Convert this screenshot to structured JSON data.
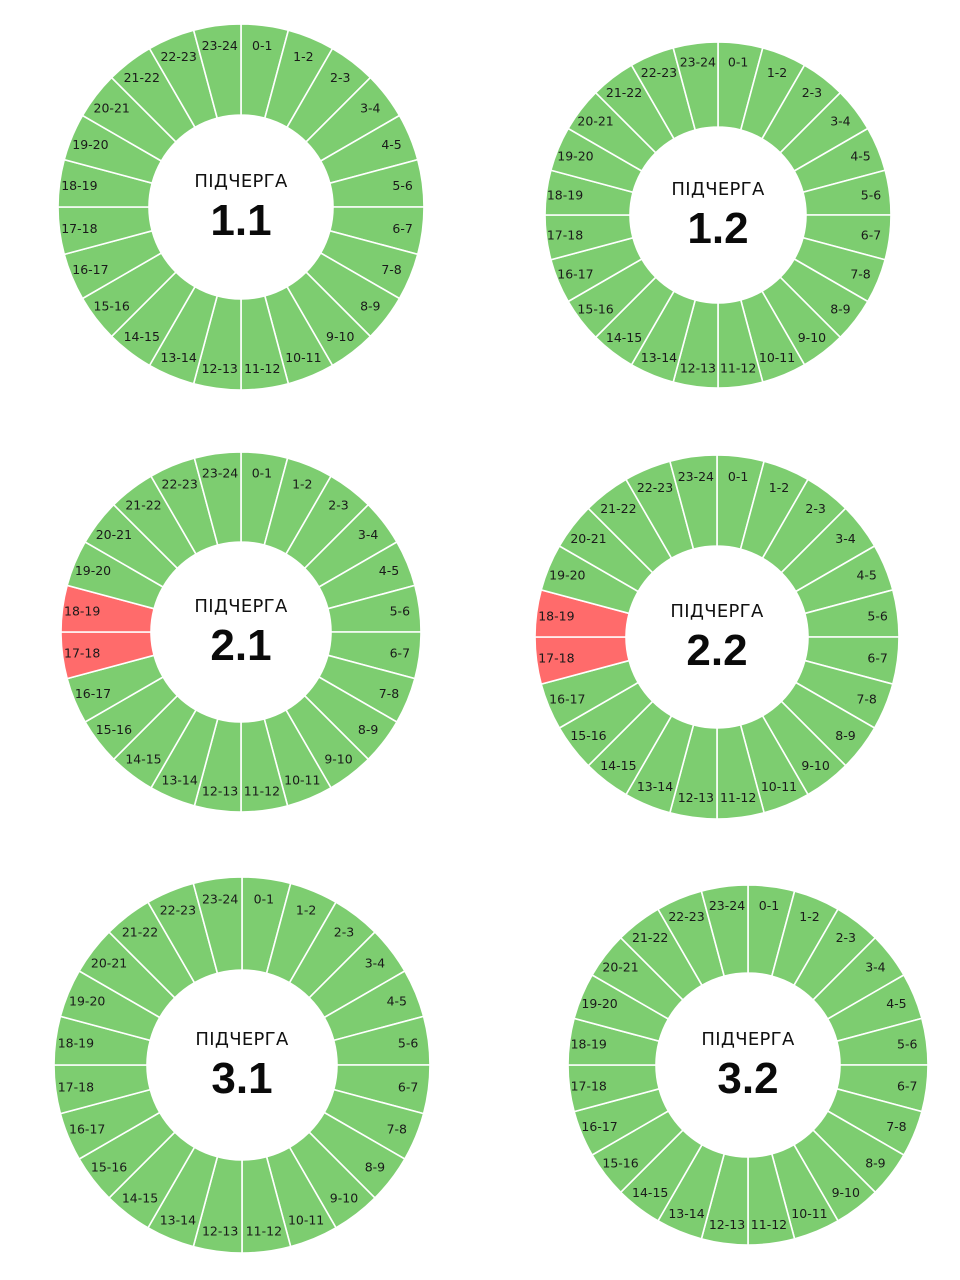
{
  "colors": {
    "on": "#7dcd70",
    "off": "#ff6b6b",
    "divider": "#ffffff",
    "background": "#ffffff"
  },
  "chart_data": [
    {
      "type": "pie",
      "caption": "ПІДЧЕРГА",
      "queue": "1.1",
      "categories": [
        "0-1",
        "1-2",
        "2-3",
        "3-4",
        "4-5",
        "5-6",
        "6-7",
        "7-8",
        "8-9",
        "9-10",
        "10-11",
        "11-12",
        "12-13",
        "13-14",
        "14-15",
        "15-16",
        "16-17",
        "17-18",
        "18-19",
        "19-20",
        "20-21",
        "21-22",
        "22-23",
        "23-24"
      ],
      "states": [
        "on",
        "on",
        "on",
        "on",
        "on",
        "on",
        "on",
        "on",
        "on",
        "on",
        "on",
        "on",
        "on",
        "on",
        "on",
        "on",
        "on",
        "on",
        "on",
        "on",
        "on",
        "on",
        "on",
        "on"
      ]
    },
    {
      "type": "pie",
      "caption": "ПІДЧЕРГА",
      "queue": "1.2",
      "categories": [
        "0-1",
        "1-2",
        "2-3",
        "3-4",
        "4-5",
        "5-6",
        "6-7",
        "7-8",
        "8-9",
        "9-10",
        "10-11",
        "11-12",
        "12-13",
        "13-14",
        "14-15",
        "15-16",
        "16-17",
        "17-18",
        "18-19",
        "19-20",
        "20-21",
        "21-22",
        "22-23",
        "23-24"
      ],
      "states": [
        "on",
        "on",
        "on",
        "on",
        "on",
        "on",
        "on",
        "on",
        "on",
        "on",
        "on",
        "on",
        "on",
        "on",
        "on",
        "on",
        "on",
        "on",
        "on",
        "on",
        "on",
        "on",
        "on",
        "on"
      ]
    },
    {
      "type": "pie",
      "caption": "ПІДЧЕРГА",
      "queue": "2.1",
      "categories": [
        "0-1",
        "1-2",
        "2-3",
        "3-4",
        "4-5",
        "5-6",
        "6-7",
        "7-8",
        "8-9",
        "9-10",
        "10-11",
        "11-12",
        "12-13",
        "13-14",
        "14-15",
        "15-16",
        "16-17",
        "17-18",
        "18-19",
        "19-20",
        "20-21",
        "21-22",
        "22-23",
        "23-24"
      ],
      "states": [
        "on",
        "on",
        "on",
        "on",
        "on",
        "on",
        "on",
        "on",
        "on",
        "on",
        "on",
        "on",
        "on",
        "on",
        "on",
        "on",
        "on",
        "off",
        "off",
        "on",
        "on",
        "on",
        "on",
        "on"
      ]
    },
    {
      "type": "pie",
      "caption": "ПІДЧЕРГА",
      "queue": "2.2",
      "categories": [
        "0-1",
        "1-2",
        "2-3",
        "3-4",
        "4-5",
        "5-6",
        "6-7",
        "7-8",
        "8-9",
        "9-10",
        "10-11",
        "11-12",
        "12-13",
        "13-14",
        "14-15",
        "15-16",
        "16-17",
        "17-18",
        "18-19",
        "19-20",
        "20-21",
        "21-22",
        "22-23",
        "23-24"
      ],
      "states": [
        "on",
        "on",
        "on",
        "on",
        "on",
        "on",
        "on",
        "on",
        "on",
        "on",
        "on",
        "on",
        "on",
        "on",
        "on",
        "on",
        "on",
        "off",
        "off",
        "on",
        "on",
        "on",
        "on",
        "on"
      ]
    },
    {
      "type": "pie",
      "caption": "ПІДЧЕРГА",
      "queue": "3.1",
      "categories": [
        "0-1",
        "1-2",
        "2-3",
        "3-4",
        "4-5",
        "5-6",
        "6-7",
        "7-8",
        "8-9",
        "9-10",
        "10-11",
        "11-12",
        "12-13",
        "13-14",
        "14-15",
        "15-16",
        "16-17",
        "17-18",
        "18-19",
        "19-20",
        "20-21",
        "21-22",
        "22-23",
        "23-24"
      ],
      "states": [
        "on",
        "on",
        "on",
        "on",
        "on",
        "on",
        "on",
        "on",
        "on",
        "on",
        "on",
        "on",
        "on",
        "on",
        "on",
        "on",
        "on",
        "on",
        "on",
        "on",
        "on",
        "on",
        "on",
        "on"
      ]
    },
    {
      "type": "pie",
      "caption": "ПІДЧЕРГА",
      "queue": "3.2",
      "categories": [
        "0-1",
        "1-2",
        "2-3",
        "3-4",
        "4-5",
        "5-6",
        "6-7",
        "7-8",
        "8-9",
        "9-10",
        "10-11",
        "11-12",
        "12-13",
        "13-14",
        "14-15",
        "15-16",
        "16-17",
        "17-18",
        "18-19",
        "19-20",
        "20-21",
        "21-22",
        "22-23",
        "23-24"
      ],
      "states": [
        "on",
        "on",
        "on",
        "on",
        "on",
        "on",
        "on",
        "on",
        "on",
        "on",
        "on",
        "on",
        "on",
        "on",
        "on",
        "on",
        "on",
        "on",
        "on",
        "on",
        "on",
        "on",
        "on",
        "on"
      ]
    }
  ]
}
